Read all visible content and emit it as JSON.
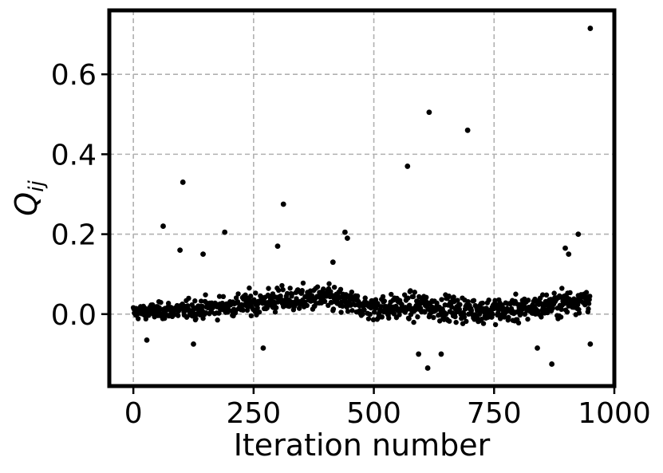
{
  "chart_data": {
    "type": "scatter",
    "title": "",
    "xlabel": "Iteration number",
    "ylabel_main": "Q",
    "ylabel_sub": "ij",
    "xlim": [
      -50,
      1000
    ],
    "ylim": [
      -0.18,
      0.76
    ],
    "xticks": [
      0,
      250,
      500,
      750,
      1000
    ],
    "xtick_labels": [
      "0",
      "250",
      "500",
      "750",
      "1000"
    ],
    "yticks": [
      0.0,
      0.2,
      0.4,
      0.6
    ],
    "ytick_labels": [
      "0.0",
      "0.2",
      "0.4",
      "0.6"
    ],
    "grid": true,
    "marker_color": "#000000",
    "n_points": 950,
    "series": [
      {
        "outliers": [
          {
            "x": 62,
            "y": 0.22
          },
          {
            "x": 103,
            "y": 0.33
          },
          {
            "x": 97,
            "y": 0.16
          },
          {
            "x": 145,
            "y": 0.15
          },
          {
            "x": 190,
            "y": 0.205
          },
          {
            "x": 312,
            "y": 0.275
          },
          {
            "x": 300,
            "y": 0.17
          },
          {
            "x": 440,
            "y": 0.205
          },
          {
            "x": 445,
            "y": 0.19
          },
          {
            "x": 570,
            "y": 0.37
          },
          {
            "x": 615,
            "y": 0.505
          },
          {
            "x": 695,
            "y": 0.46
          },
          {
            "x": 950,
            "y": 0.715
          },
          {
            "x": 925,
            "y": 0.2
          },
          {
            "x": 898,
            "y": 0.165
          },
          {
            "x": 905,
            "y": 0.15
          },
          {
            "x": 612,
            "y": -0.135
          },
          {
            "x": 870,
            "y": -0.125
          },
          {
            "x": 640,
            "y": -0.1
          },
          {
            "x": 593,
            "y": -0.1
          },
          {
            "x": 125,
            "y": -0.075
          },
          {
            "x": 270,
            "y": -0.085
          },
          {
            "x": 840,
            "y": -0.085
          },
          {
            "x": 950,
            "y": -0.075
          },
          {
            "x": 28,
            "y": -0.065
          },
          {
            "x": 415,
            "y": 0.13
          }
        ],
        "bulk_trend": [
          {
            "x": 0,
            "y": 0.005
          },
          {
            "x": 100,
            "y": 0.01
          },
          {
            "x": 200,
            "y": 0.02
          },
          {
            "x": 300,
            "y": 0.035
          },
          {
            "x": 400,
            "y": 0.04
          },
          {
            "x": 500,
            "y": 0.015
          },
          {
            "x": 600,
            "y": 0.02
          },
          {
            "x": 700,
            "y": 0.01
          },
          {
            "x": 800,
            "y": 0.01
          },
          {
            "x": 900,
            "y": 0.03
          },
          {
            "x": 950,
            "y": 0.04
          }
        ]
      }
    ]
  }
}
